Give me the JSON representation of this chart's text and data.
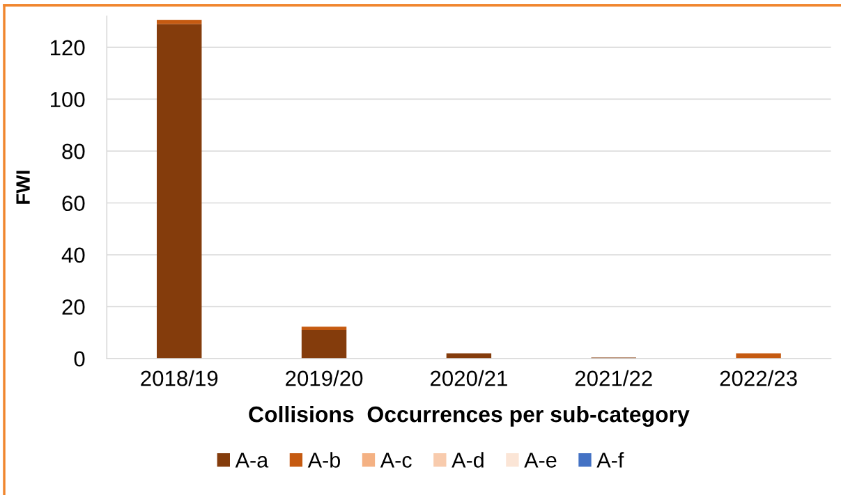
{
  "chart_data": {
    "type": "bar",
    "stacked": true,
    "xlabel": "Collisions  Occurrences per sub-category",
    "ylabel": "FWI",
    "categories": [
      "2018/19",
      "2019/20",
      "2020/21",
      "2021/22",
      "2022/23"
    ],
    "series": [
      {
        "name": "A-a",
        "color": "#843c0c",
        "values": [
          129,
          11,
          2,
          0.4,
          null
        ]
      },
      {
        "name": "A-b",
        "color": "#c55a11",
        "values": [
          1.5,
          1.3,
          null,
          null,
          2
        ]
      },
      {
        "name": "A-c",
        "color": "#f4b183",
        "values": [
          null,
          null,
          null,
          null,
          null
        ]
      },
      {
        "name": "A-d",
        "color": "#f8cbad",
        "values": [
          null,
          null,
          null,
          null,
          null
        ]
      },
      {
        "name": "A-e",
        "color": "#fbe5d6",
        "values": [
          null,
          null,
          null,
          null,
          null
        ]
      },
      {
        "name": "A-f",
        "color": "#4472c4",
        "values": [
          null,
          null,
          null,
          null,
          null
        ]
      }
    ],
    "ylim": [
      0,
      132
    ],
    "yticks": [
      0,
      20,
      40,
      60,
      80,
      100,
      120
    ],
    "grid": "y",
    "legend": "bottom"
  }
}
